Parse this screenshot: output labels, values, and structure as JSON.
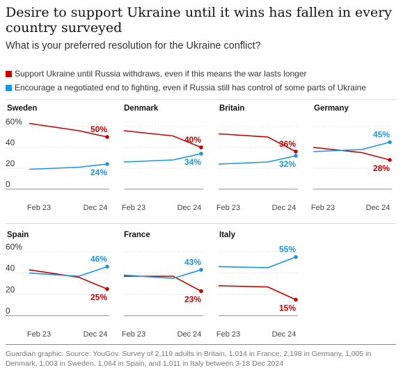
{
  "title": "Desire to support Ukraine until it wins has fallen in every country surveyed",
  "subtitle": "What is your preferred resolution for the Ukraine conflict?",
  "legend": [
    {
      "label": "Support Ukraine until Russia withdraws, even if this means the war lasts longer",
      "color": "#c70000"
    },
    {
      "label": "Encourage a negotiated end to fighting, even if Russia still has control of some parts of Ukraine",
      "color": "#1b95e0"
    }
  ],
  "source": "Guardian graphic. Source: YouGov. Survey of 2,119 adults in Britain, 1,014 in France, 2,198 in Germany, 1,005 in Denmark, 1,003 in Sweden, 1,064 in Spain, and 1,011 in Italy between 3-18 Dec 2024",
  "chart_data": {
    "type": "line",
    "x": [
      "Feb 23",
      "Dec 24"
    ],
    "ylim": [
      0,
      60
    ],
    "yticks": [
      "60%",
      "40",
      "20",
      "0"
    ],
    "grid": true,
    "legend_position": "top",
    "colors": {
      "support": "#c70000",
      "negotiate": "#1b95e0"
    },
    "panels": [
      {
        "country": "Sweden",
        "support": [
          63,
          56,
          50
        ],
        "negotiate": [
          19,
          21,
          24
        ],
        "support_label": "50%",
        "negotiate_label": "24%"
      },
      {
        "country": "Denmark",
        "support": [
          56,
          51,
          40
        ],
        "negotiate": [
          26,
          28,
          34
        ],
        "support_label": "40%",
        "negotiate_label": "34%"
      },
      {
        "country": "Britain",
        "support": [
          53,
          50,
          36
        ],
        "negotiate": [
          24,
          26,
          32
        ],
        "support_label": "36%",
        "negotiate_label": "32%"
      },
      {
        "country": "Germany",
        "support": [
          40,
          35,
          28
        ],
        "negotiate": [
          36,
          38,
          45
        ],
        "support_label": "28%",
        "negotiate_label": "45%"
      },
      {
        "country": "Spain",
        "support": [
          43,
          36,
          25
        ],
        "negotiate": [
          40,
          37,
          46
        ],
        "support_label": "25%",
        "negotiate_label": "46%"
      },
      {
        "country": "France",
        "support": [
          37,
          37,
          23
        ],
        "negotiate": [
          38,
          35,
          43
        ],
        "support_label": "23%",
        "negotiate_label": "43%"
      },
      {
        "country": "Italy",
        "support": [
          28,
          27,
          15
        ],
        "negotiate": [
          46,
          45,
          55
        ],
        "support_label": "15%",
        "negotiate_label": "55%"
      }
    ]
  }
}
